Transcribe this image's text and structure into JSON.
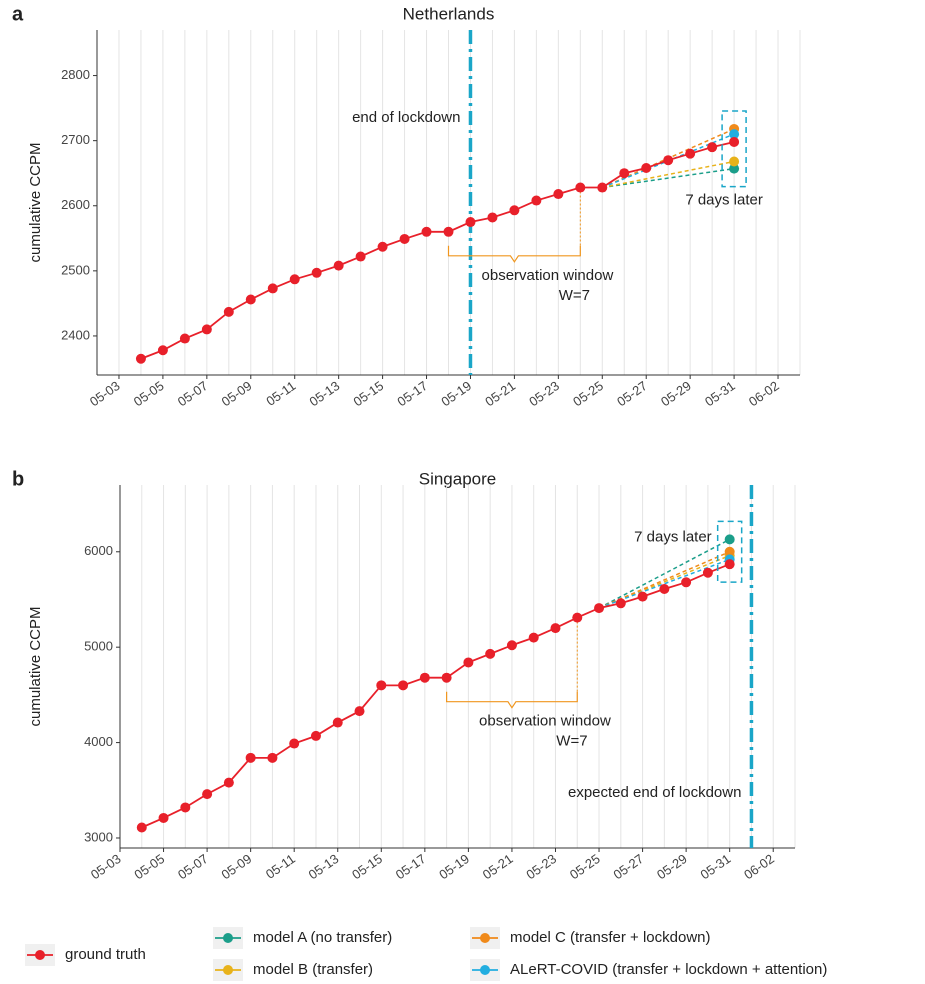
{
  "chart_data": [
    {
      "type": "line",
      "panel_label": "a",
      "title": "Netherlands",
      "ylabel": "cumulative CCPM",
      "xlim": [
        "05-02",
        "06-03"
      ],
      "xticks": [
        "05-03",
        "05-05",
        "05-07",
        "05-09",
        "05-11",
        "05-13",
        "05-15",
        "05-17",
        "05-19",
        "05-21",
        "05-23",
        "05-25",
        "05-27",
        "05-29",
        "05-31",
        "06-02"
      ],
      "ylim": [
        2340,
        2870
      ],
      "yticks": [
        2400,
        2500,
        2600,
        2700,
        2800
      ],
      "grid": "x",
      "series": [
        {
          "name": "ground truth",
          "color": "#e8202a",
          "x": [
            "05-04",
            "05-05",
            "05-06",
            "05-07",
            "05-08",
            "05-09",
            "05-10",
            "05-11",
            "05-12",
            "05-13",
            "05-14",
            "05-15",
            "05-16",
            "05-17",
            "05-18",
            "05-19",
            "05-20",
            "05-21",
            "05-22",
            "05-23",
            "05-24",
            "05-25",
            "05-26",
            "05-27",
            "05-28",
            "05-29",
            "05-30",
            "05-31"
          ],
          "values": [
            2365,
            2378,
            2396,
            2410,
            2437,
            2456,
            2473,
            2487,
            2497,
            2508,
            2522,
            2537,
            2549,
            2560,
            2560,
            2575,
            2582,
            2593,
            2608,
            2618,
            2628,
            2628,
            2650,
            2658,
            2670,
            2680,
            2690,
            2698
          ]
        },
        {
          "name": "model A (no transfer)",
          "color": "#1b9e8a",
          "x": [
            "05-25",
            "05-31"
          ],
          "values": [
            2628,
            2657
          ]
        },
        {
          "name": "model B (transfer)",
          "color": "#e8b21a",
          "x": [
            "05-25",
            "05-31"
          ],
          "values": [
            2628,
            2668
          ]
        },
        {
          "name": "model C (transfer + lockdown)",
          "color": "#f08a1a",
          "x": [
            "05-25",
            "05-31"
          ],
          "values": [
            2628,
            2718
          ]
        },
        {
          "name": "ALeRT-COVID (transfer + lockdown + attention)",
          "color": "#22aee0",
          "x": [
            "05-25",
            "05-31"
          ],
          "values": [
            2628,
            2710
          ]
        }
      ],
      "vline": {
        "x": "05-19",
        "label": "end of lockdown",
        "color": "#1aa6c8"
      },
      "window": {
        "from": "05-18",
        "to": "05-24",
        "label": "observation window",
        "sublabel": "W=7",
        "color": "#f0961e"
      },
      "horizon": {
        "x": "05-31",
        "label": "7 days later",
        "color": "#1aa6c8"
      }
    },
    {
      "type": "line",
      "panel_label": "b",
      "title": "Singapore",
      "ylabel": "cumulative CCPM",
      "xlim": [
        "05-03",
        "06-03"
      ],
      "xticks": [
        "05-03",
        "05-05",
        "05-07",
        "05-09",
        "05-11",
        "05-13",
        "05-15",
        "05-17",
        "05-19",
        "05-21",
        "05-23",
        "05-25",
        "05-27",
        "05-29",
        "05-31",
        "06-02"
      ],
      "ylim": [
        2895,
        6700
      ],
      "yticks": [
        3000,
        4000,
        5000,
        6000
      ],
      "grid": "x",
      "series": [
        {
          "name": "ground truth",
          "color": "#e8202a",
          "x": [
            "05-04",
            "05-05",
            "05-06",
            "05-07",
            "05-08",
            "05-09",
            "05-10",
            "05-11",
            "05-12",
            "05-13",
            "05-14",
            "05-15",
            "05-16",
            "05-17",
            "05-18",
            "05-19",
            "05-20",
            "05-21",
            "05-22",
            "05-23",
            "05-24",
            "05-25",
            "05-26",
            "05-27",
            "05-28",
            "05-29",
            "05-30",
            "05-31"
          ],
          "values": [
            3110,
            3210,
            3320,
            3460,
            3580,
            3840,
            3840,
            3990,
            4070,
            4210,
            4330,
            4600,
            4600,
            4680,
            4680,
            4840,
            4930,
            5020,
            5100,
            5200,
            5310,
            5410,
            5460,
            5530,
            5610,
            5680,
            5780,
            5870
          ]
        },
        {
          "name": "model A (no transfer)",
          "color": "#1b9e8a",
          "x": [
            "05-25",
            "05-31"
          ],
          "values": [
            5410,
            6130
          ]
        },
        {
          "name": "model B (transfer)",
          "color": "#e8b21a",
          "x": [
            "05-25",
            "05-31"
          ],
          "values": [
            5410,
            5960
          ]
        },
        {
          "name": "model C (transfer + lockdown)",
          "color": "#f08a1a",
          "x": [
            "05-25",
            "05-31"
          ],
          "values": [
            5410,
            6000
          ]
        },
        {
          "name": "ALeRT-COVID (transfer + lockdown + attention)",
          "color": "#22aee0",
          "x": [
            "05-25",
            "05-31"
          ],
          "values": [
            5410,
            5920
          ]
        }
      ],
      "vline": {
        "x": "06-01",
        "label": "expected end of lockdown",
        "color": "#1aa6c8"
      },
      "window": {
        "from": "05-18",
        "to": "05-24",
        "label": "observation window",
        "sublabel": "W=7",
        "color": "#f0961e"
      },
      "horizon": {
        "x": "05-31",
        "label": "7 days later",
        "color": "#1aa6c8"
      }
    }
  ]
}
